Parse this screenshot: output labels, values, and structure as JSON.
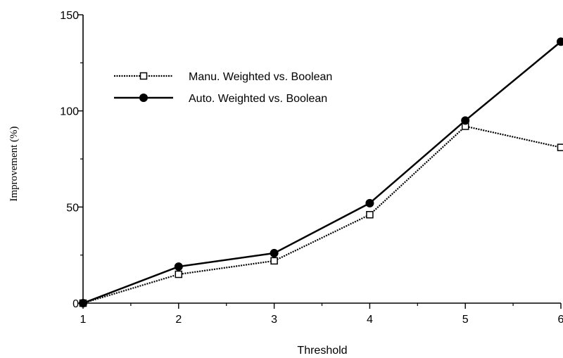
{
  "chart_data": {
    "type": "line",
    "title": "",
    "xlabel": "Threshold",
    "ylabel": "Improvement (%)",
    "x": [
      1,
      2,
      3,
      4,
      5,
      6
    ],
    "xlim": [
      1,
      6
    ],
    "ylim": [
      0,
      150
    ],
    "xticks": [
      "1",
      "2",
      "3",
      "4",
      "5",
      "6"
    ],
    "yticks": [
      "0",
      "50",
      "100",
      "150"
    ],
    "grid": false,
    "legend_position": "top-left",
    "series": [
      {
        "name": "Manu. Weighted vs. Boolean",
        "values": [
          0,
          15,
          22,
          46,
          92,
          81
        ],
        "line_style": "dotted",
        "marker": "open-square",
        "color": "#000000"
      },
      {
        "name": "Auto. Weighted vs. Boolean",
        "values": [
          0,
          19,
          26,
          52,
          95,
          136
        ],
        "line_style": "solid",
        "marker": "filled-circle",
        "color": "#000000"
      }
    ]
  }
}
